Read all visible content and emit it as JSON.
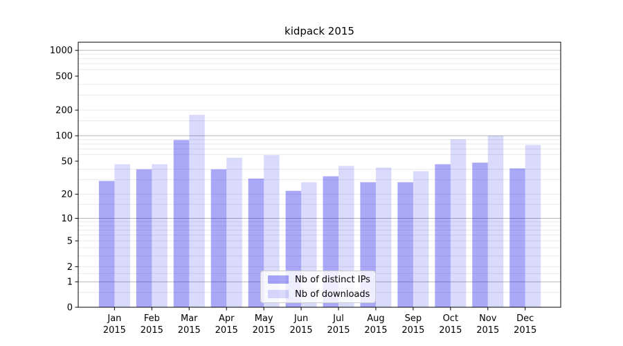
{
  "chart_data": {
    "type": "bar",
    "title": "kidpack 2015",
    "categories": [
      "Jan",
      "Feb",
      "Mar",
      "Apr",
      "May",
      "Jun",
      "Jul",
      "Aug",
      "Sep",
      "Oct",
      "Nov",
      "Dec"
    ],
    "year_label": "2015",
    "series": [
      {
        "name": "Nb of distinct IPs",
        "color": "rgba(10,10,235,0.35)",
        "values": [
          29,
          40,
          89,
          40,
          31,
          22,
          33,
          28,
          28,
          46,
          48,
          41
        ]
      },
      {
        "name": "Nb of downloads",
        "color": "rgba(10,10,235,0.15)",
        "values": [
          46,
          46,
          176,
          55,
          59,
          28,
          44,
          42,
          38,
          91,
          100,
          78
        ]
      }
    ],
    "xlabel": "",
    "ylabel": "",
    "yticks": [
      0,
      1,
      2,
      5,
      10,
      20,
      50,
      100,
      200,
      500,
      1000
    ],
    "y_scale": "log10(value+1)",
    "ylim": [
      0,
      1100
    ],
    "grid": "both",
    "major_grid_values": [
      1,
      10,
      100,
      1000
    ],
    "minor_grid_values": [
      0.5,
      1.5,
      2,
      3,
      4,
      5,
      6,
      7,
      8,
      9,
      15,
      20,
      30,
      40,
      60,
      70,
      80,
      90,
      150,
      200,
      300,
      400,
      600,
      700,
      800,
      900
    ],
    "legend_position": "lower center",
    "axis_color": "#000000",
    "major_grid_color": "#b6b6b6",
    "minor_grid_color": "#e9e9e9",
    "tick_label_color": "#000000"
  }
}
